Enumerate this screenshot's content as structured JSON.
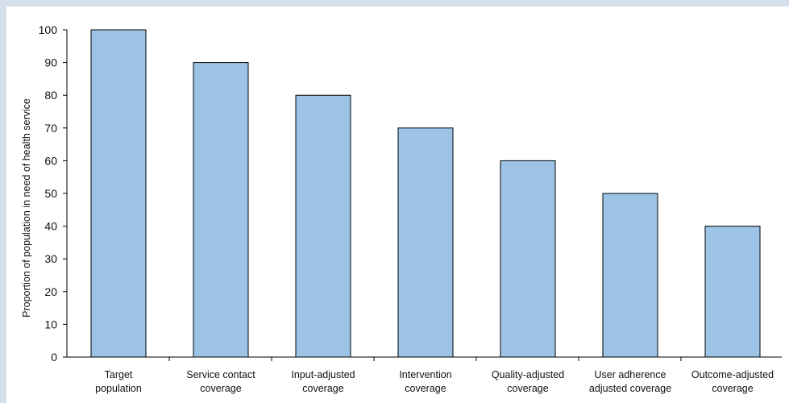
{
  "chart_data": {
    "type": "bar",
    "title": "",
    "xlabel": "",
    "ylabel": "Proportion of population in need of health service",
    "categories": [
      [
        "Target",
        "population"
      ],
      [
        "Service contact",
        "coverage"
      ],
      [
        "Input-adjusted",
        "coverage"
      ],
      [
        "Intervention",
        "coverage"
      ],
      [
        "Quality-adjusted",
        "coverage"
      ],
      [
        "User adherence",
        "adjusted coverage"
      ],
      [
        "Outcome-adjusted",
        "coverage"
      ]
    ],
    "values": [
      100,
      90,
      80,
      70,
      60,
      50,
      40
    ],
    "ylim": [
      0,
      100
    ],
    "yticks": [
      0,
      10,
      20,
      30,
      40,
      50,
      60,
      70,
      80,
      90,
      100
    ],
    "grid": false,
    "legend": "none",
    "colors": {
      "bar_fill": "#9dc3e6",
      "bar_stroke": "#000000",
      "axis": "#000000",
      "frame": "#d5e0ec"
    }
  }
}
